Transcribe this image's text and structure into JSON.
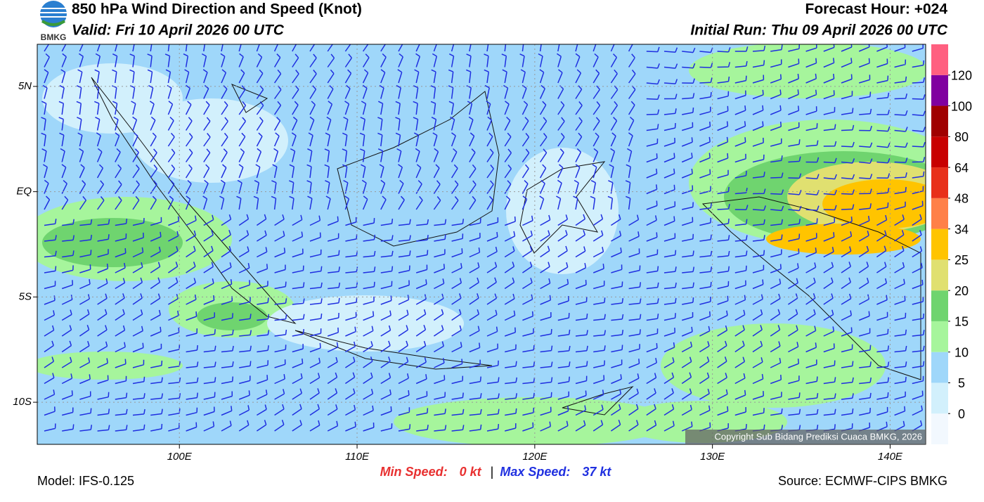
{
  "header": {
    "title": "850 hPa Wind Direction and Speed (Knot)",
    "valid": "Valid: Fri 10 April 2026 00 UTC",
    "forecast_hour": "Forecast Hour: +024",
    "initial_run": "Initial Run: Thu 09 April 2026 00 UTC",
    "logo": "BMKG"
  },
  "map": {
    "lon_range": [
      92,
      142
    ],
    "lat_range": [
      -12,
      7
    ],
    "lat_ticks": [
      {
        "value": 5,
        "label": "5N"
      },
      {
        "value": 0,
        "label": "EQ"
      },
      {
        "value": -5,
        "label": "5S"
      },
      {
        "value": -10,
        "label": "10S"
      }
    ],
    "lon_ticks": [
      {
        "value": 100,
        "label": "100E"
      },
      {
        "value": 110,
        "label": "110E"
      },
      {
        "value": 120,
        "label": "120E"
      },
      {
        "value": 130,
        "label": "130E"
      },
      {
        "value": 140,
        "label": "140E"
      }
    ],
    "copyright": "Copyright Sub Bidang Prediksi Cuaca BMKG, 2026"
  },
  "legend": {
    "levels": [
      0,
      5,
      10,
      15,
      20,
      25,
      34,
      48,
      64,
      80,
      100,
      120
    ],
    "colors": [
      "#f2f8fe",
      "#d2f0fc",
      "#9fd7fa",
      "#a6f59c",
      "#6fd46f",
      "#e0e070",
      "#ffc400",
      "#ff8048",
      "#e8301a",
      "#c80000",
      "#a00000",
      "#8000a0",
      "#ff6080"
    ]
  },
  "speed": {
    "min_label": "Min Speed:",
    "min_value": "0 kt",
    "separator": "|",
    "max_label": "Max Speed:",
    "max_value": "37 kt"
  },
  "footer": {
    "model": "Model: IFS-0.125",
    "source": "Source: ECMWF-CIPS BMKG"
  }
}
